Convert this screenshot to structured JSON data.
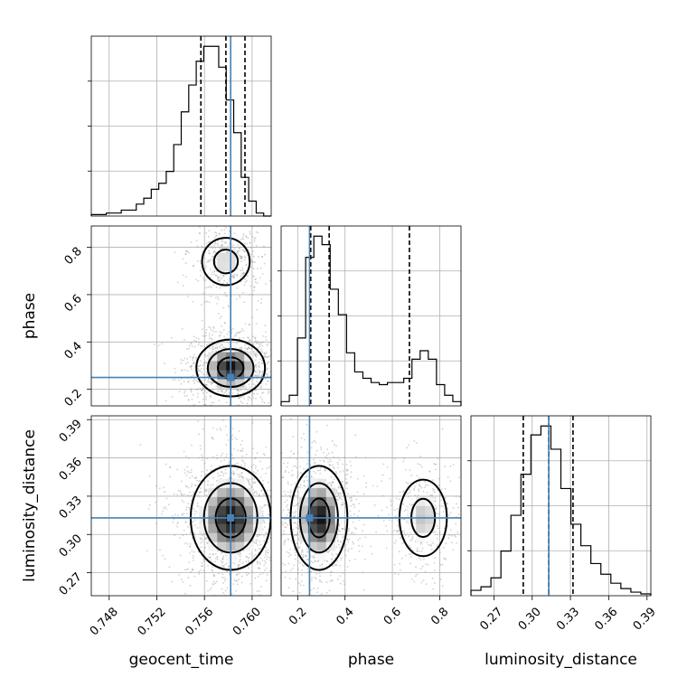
{
  "chart_data": {
    "type": "corner",
    "parameters": [
      "geocent_time",
      "phase",
      "luminosity_distance"
    ],
    "truths": {
      "geocent_time": 0.7582,
      "phase": 0.25,
      "luminosity_distance": 0.313
    },
    "colors": {
      "truth": "#4682b4",
      "contour": "#000000",
      "grid": "#b0b0b0"
    },
    "ranges": {
      "geocent_time": [
        0.7465,
        0.7616
      ],
      "phase": [
        0.13,
        0.89
      ],
      "luminosity_distance": [
        0.252,
        0.393
      ]
    },
    "tick_labels": {
      "geocent_time": [
        "0.748",
        "0.752",
        "0.756",
        "0.760"
      ],
      "phase": [
        "0.2",
        "0.4",
        "0.6",
        "0.8"
      ],
      "luminosity_distance": [
        "0.27",
        "0.30",
        "0.33",
        "0.36",
        "0.39"
      ]
    },
    "tick_values": {
      "geocent_time": [
        0.748,
        0.752,
        0.756,
        0.76
      ],
      "phase": [
        0.2,
        0.4,
        0.6,
        0.8
      ],
      "luminosity_distance": [
        0.27,
        0.3,
        0.33,
        0.36,
        0.39
      ]
    },
    "quantiles": {
      "geocent_time": [
        0.7557,
        0.7578,
        0.7594
      ],
      "phase": [
        0.255,
        0.333,
        0.672
      ],
      "luminosity_distance": [
        0.293,
        0.313,
        0.332
      ]
    },
    "histograms": {
      "geocent_time": {
        "bins": [
          0.7465,
          0.7616
        ],
        "counts": [
          0.5,
          0.5,
          1,
          1,
          2,
          2,
          4,
          6,
          9,
          11,
          15,
          24,
          35,
          44,
          52,
          57,
          57,
          50,
          39,
          28,
          13,
          5,
          1,
          0
        ]
      },
      "phase": {
        "bins": [
          0.13,
          0.89
        ],
        "counts": [
          2,
          5,
          32,
          70,
          80,
          76,
          55,
          43,
          25,
          16,
          13,
          11,
          10,
          11,
          11,
          13,
          22,
          26,
          22,
          10,
          5,
          2
        ]
      },
      "luminosity_distance": {
        "bins": [
          0.252,
          0.393
        ],
        "counts": [
          3,
          5,
          10,
          25,
          45,
          68,
          90,
          95,
          82,
          60,
          40,
          28,
          18,
          12,
          7,
          4,
          2,
          1
        ]
      }
    },
    "joint_density": [
      {
        "pair": [
          "geocent_time",
          "phase"
        ],
        "peaks": [
          {
            "x": 0.7582,
            "y": 0.29,
            "sx": 0.0012,
            "sy": 0.05,
            "w": 1.0
          },
          {
            "x": 0.7578,
            "y": 0.74,
            "sx": 0.001,
            "sy": 0.05,
            "w": 0.35
          }
        ]
      },
      {
        "pair": [
          "geocent_time",
          "luminosity_distance"
        ],
        "peaks": [
          {
            "x": 0.7582,
            "y": 0.313,
            "sx": 0.0014,
            "sy": 0.017,
            "w": 1.0
          }
        ]
      },
      {
        "pair": [
          "phase",
          "luminosity_distance"
        ],
        "peaks": [
          {
            "x": 0.29,
            "y": 0.313,
            "sx": 0.05,
            "sy": 0.017,
            "w": 1.0
          },
          {
            "x": 0.73,
            "y": 0.313,
            "sx": 0.05,
            "sy": 0.015,
            "w": 0.4
          }
        ]
      }
    ],
    "grid": true,
    "legend": "none"
  }
}
